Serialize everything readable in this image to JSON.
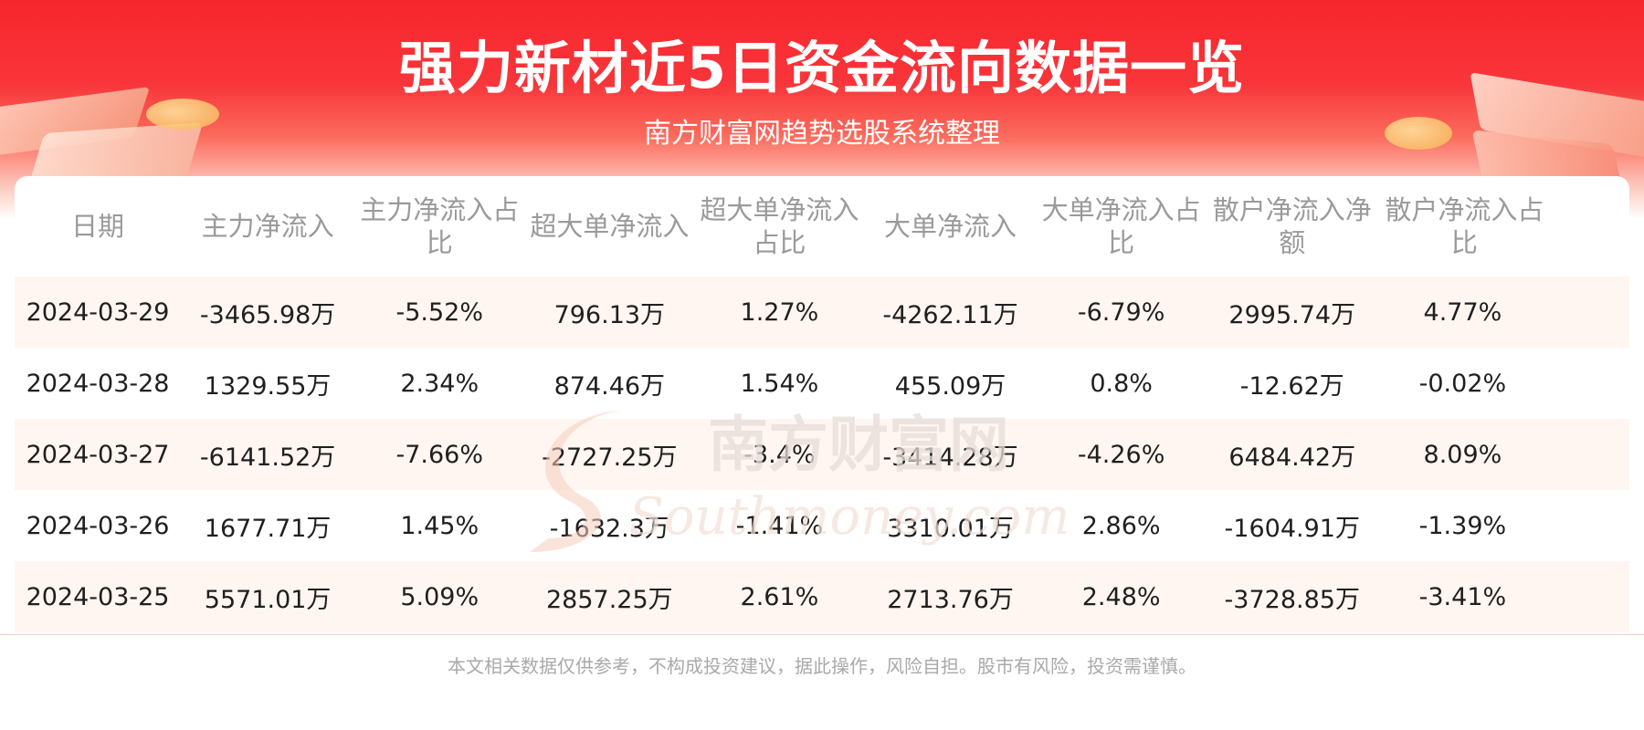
{
  "header": {
    "title": "强力新材近5日资金流向数据一览",
    "subtitle": "南方财富网趋势选股系统整理"
  },
  "table": {
    "columns": [
      "日期",
      "主力净流入",
      "主力净流入占比",
      "超大单净流入",
      "超大单净流入占比",
      "大单净流入",
      "大单净流入占比",
      "散户净流入净额",
      "散户净流入占比"
    ],
    "rows": [
      [
        "2024-03-29",
        "-3465.98万",
        "-5.52%",
        "796.13万",
        "1.27%",
        "-4262.11万",
        "-6.79%",
        "2995.74万",
        "4.77%"
      ],
      [
        "2024-03-28",
        "1329.55万",
        "2.34%",
        "874.46万",
        "1.54%",
        "455.09万",
        "0.8%",
        "-12.62万",
        "-0.02%"
      ],
      [
        "2024-03-27",
        "-6141.52万",
        "-7.66%",
        "-2727.25万",
        "-3.4%",
        "-3414.28万",
        "-4.26%",
        "6484.42万",
        "8.09%"
      ],
      [
        "2024-03-26",
        "1677.71万",
        "1.45%",
        "-1632.3万",
        "-1.41%",
        "3310.01万",
        "2.86%",
        "-1604.91万",
        "-1.39%"
      ],
      [
        "2024-03-25",
        "5571.01万",
        "5.09%",
        "2857.25万",
        "2.61%",
        "2713.76万",
        "2.48%",
        "-3728.85万",
        "-3.41%"
      ]
    ]
  },
  "watermark": {
    "cn": "南方财富网",
    "en": "Southmoney.com"
  },
  "footer": {
    "disclaimer": "本文相关数据仅供参考，不构成投资建议，据此操作，风险自担。股市有风险，投资需谨慎。"
  },
  "colors": {
    "banner_red": "#f7262d",
    "header_text": "#9a9a9a",
    "row_alt_bg": "#fff6f1",
    "cell_text": "#1f1f1f"
  }
}
